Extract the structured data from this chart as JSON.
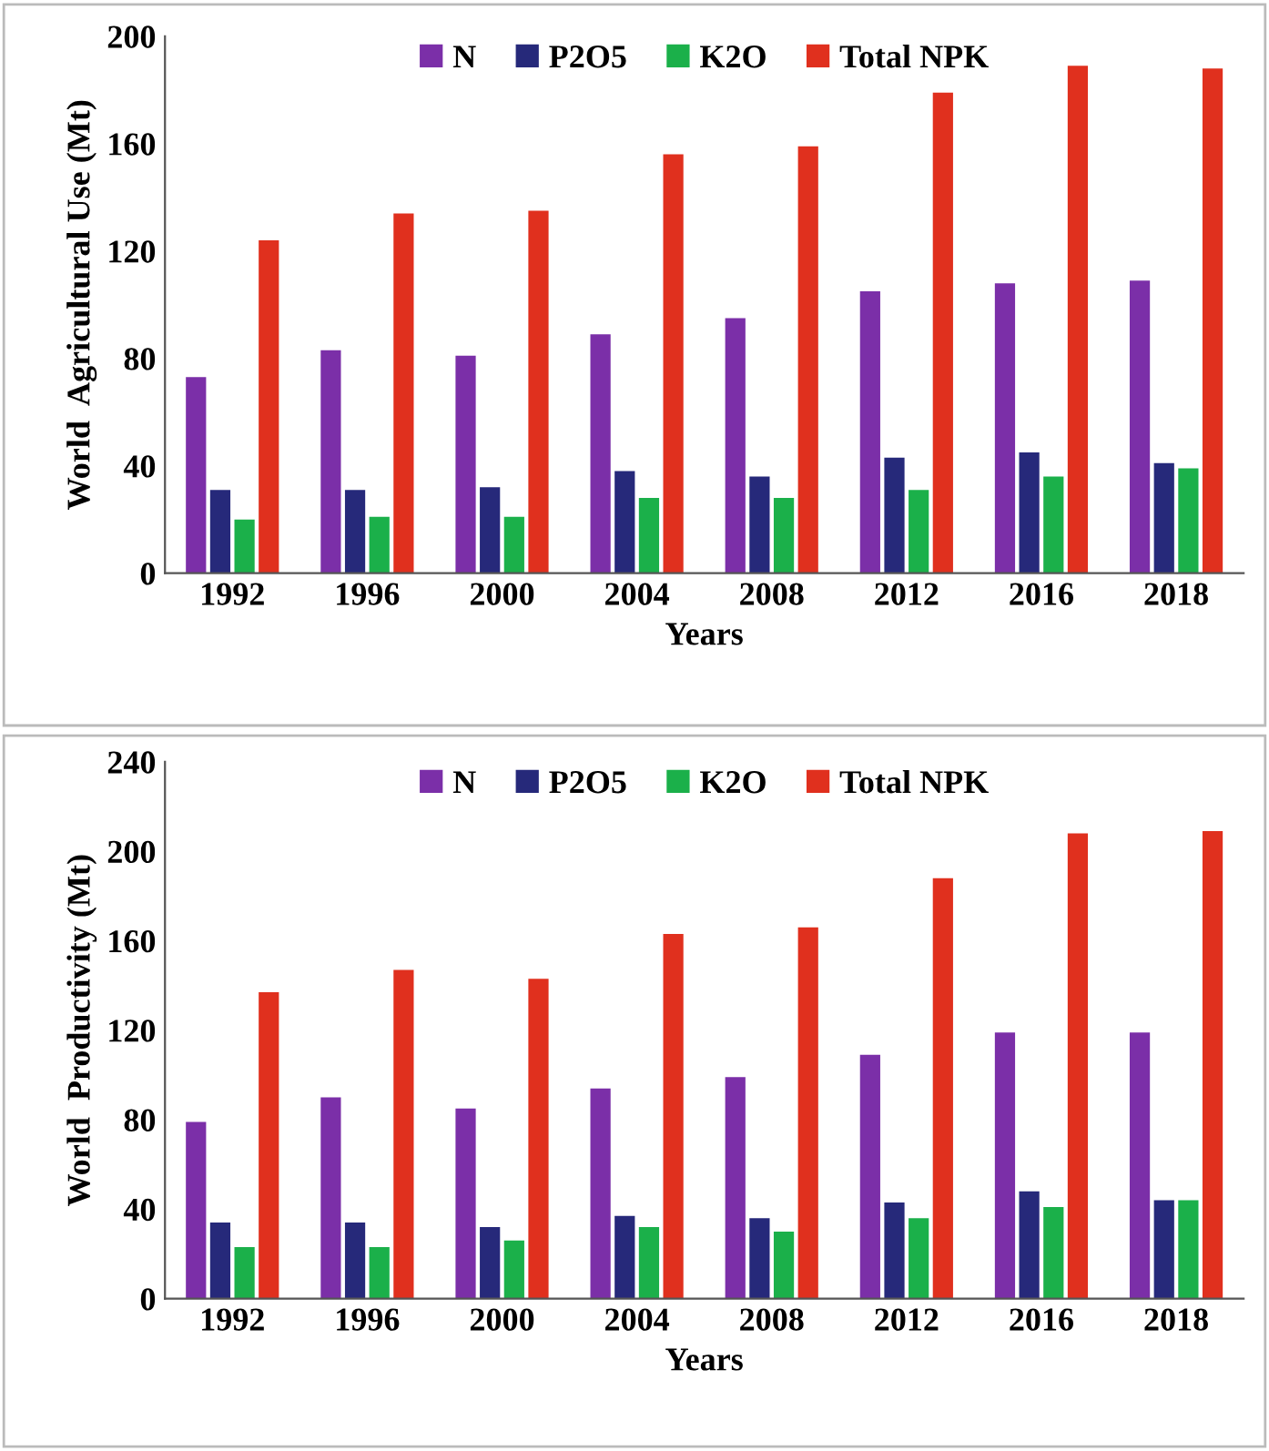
{
  "chart_data": [
    {
      "type": "bar",
      "xlabel": "Years",
      "ylabel": "World  Agricultural Use (Mt)",
      "categories": [
        "1992",
        "1996",
        "2000",
        "2004",
        "2008",
        "2012",
        "2016",
        "2018"
      ],
      "series": [
        {
          "name": "N",
          "color": "#7b2fa8",
          "values": [
            73,
            83,
            81,
            89,
            95,
            105,
            108,
            109
          ]
        },
        {
          "name": "P2O5",
          "color": "#26297a",
          "values": [
            31,
            31,
            32,
            38,
            36,
            43,
            45,
            41
          ]
        },
        {
          "name": "K2O",
          "color": "#1bb04a",
          "values": [
            20,
            21,
            21,
            28,
            28,
            31,
            36,
            39
          ]
        },
        {
          "name": "Total NPK",
          "color": "#e0301e",
          "values": [
            124,
            134,
            135,
            156,
            159,
            179,
            189,
            188
          ]
        }
      ],
      "ylim": [
        0,
        200
      ],
      "yticks": [
        0,
        40,
        80,
        120,
        160,
        200
      ],
      "legend": "top",
      "grid": false
    },
    {
      "type": "bar",
      "xlabel": "Years",
      "ylabel": "World  Productivity (Mt)",
      "categories": [
        "1992",
        "1996",
        "2000",
        "2004",
        "2008",
        "2012",
        "2016",
        "2018"
      ],
      "series": [
        {
          "name": "N",
          "color": "#7b2fa8",
          "values": [
            79,
            90,
            85,
            94,
            99,
            109,
            119,
            119
          ]
        },
        {
          "name": "P2O5",
          "color": "#26297a",
          "values": [
            34,
            34,
            32,
            37,
            36,
            43,
            48,
            44
          ]
        },
        {
          "name": "K2O",
          "color": "#1bb04a",
          "values": [
            23,
            23,
            26,
            32,
            30,
            36,
            41,
            44
          ]
        },
        {
          "name": "Total NPK",
          "color": "#e0301e",
          "values": [
            137,
            147,
            143,
            163,
            166,
            188,
            208,
            209
          ]
        }
      ],
      "ylim": [
        0,
        240
      ],
      "yticks": [
        0,
        40,
        80,
        120,
        160,
        200,
        240
      ],
      "legend": "top",
      "grid": false
    }
  ]
}
